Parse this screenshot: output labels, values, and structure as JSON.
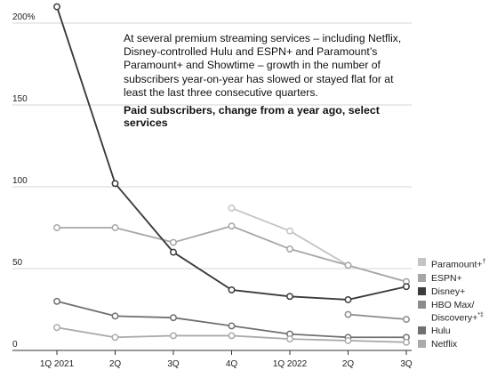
{
  "annotation": "At several premium streaming services – including Netflix, Disney-controlled Hulu and ESPN+ and Paramount’s Paramount+ and Showtime – growth in the number of subscribers year-on-year has slowed or stayed flat for at least the last three consecutive quarters.",
  "chart_data": {
    "type": "line",
    "title": "Paid subscribers, change from a year ago, select services",
    "xlabel": "",
    "ylabel": "",
    "categories": [
      "1Q 2021",
      "2Q",
      "3Q",
      "4Q",
      "1Q 2022",
      "2Q",
      "3Q"
    ],
    "y_ticks": [
      "200%",
      "150",
      "100",
      "50",
      "0"
    ],
    "y_tick_values": [
      200,
      150,
      100,
      50,
      0
    ],
    "ylim": [
      0,
      210
    ],
    "grid": "horizontal",
    "legend_position": "bottom-right",
    "series": [
      {
        "name": "Paramount+",
        "values": [
          null,
          null,
          null,
          87,
          73,
          52,
          42
        ],
        "color": "#c4c4c4"
      },
      {
        "name": "ESPN+",
        "values": [
          75,
          75,
          66,
          76,
          62,
          52,
          42
        ],
        "color": "#a6a6a6"
      },
      {
        "name": "Disney+",
        "values": [
          210,
          102,
          60,
          37,
          33,
          31,
          39
        ],
        "color": "#3c3c3c"
      },
      {
        "name": "HBO Max/ Discovery+",
        "values": [
          null,
          null,
          null,
          null,
          null,
          22,
          19
        ],
        "color": "#8c8c8c"
      },
      {
        "name": "Hulu",
        "values": [
          30,
          21,
          20,
          15,
          10,
          8,
          8
        ],
        "color": "#707070"
      },
      {
        "name": "Netflix",
        "values": [
          14,
          8,
          9,
          9,
          7,
          6,
          5
        ],
        "color": "#aaaaaa"
      }
    ]
  },
  "legend": [
    {
      "label": "Paramount+",
      "sup": "†",
      "color": "#c4c4c4"
    },
    {
      "label": "ESPN+",
      "sup": "",
      "color": "#a6a6a6"
    },
    {
      "label": "Disney+",
      "sup": "",
      "color": "#3c3c3c"
    },
    {
      "label": "HBO Max/ Discovery+",
      "sup": "*‡",
      "color": "#8c8c8c"
    },
    {
      "label": "Hulu",
      "sup": "",
      "color": "#707070"
    },
    {
      "label": "Netflix",
      "sup": "",
      "color": "#aaaaaa"
    }
  ]
}
